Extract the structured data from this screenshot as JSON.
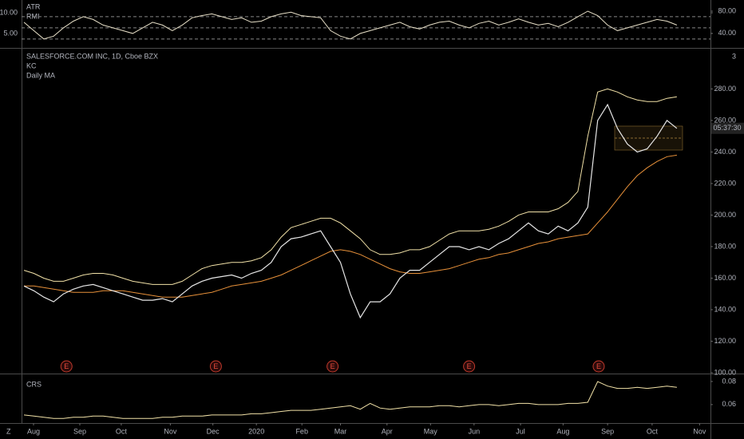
{
  "x_axis": {
    "xlim": [
      -0.24,
      69.4
    ],
    "xticks": [
      {
        "value": 0.97,
        "label": "Aug"
      },
      {
        "value": 5.65,
        "label": "Sep"
      },
      {
        "value": 9.84,
        "label": "Oct"
      },
      {
        "value": 14.8,
        "label": "Nov"
      },
      {
        "value": 19.1,
        "label": "Dec"
      },
      {
        "value": 23.5,
        "label": "2020"
      },
      {
        "value": 28.1,
        "label": "Feb"
      },
      {
        "value": 32.0,
        "label": "Mar"
      },
      {
        "value": 36.7,
        "label": "Apr"
      },
      {
        "value": 41.1,
        "label": "May"
      },
      {
        "value": 45.5,
        "label": "Jun"
      },
      {
        "value": 50.2,
        "label": "Jul"
      },
      {
        "value": 54.5,
        "label": "Aug"
      },
      {
        "value": 59.0,
        "label": "Sep"
      },
      {
        "value": 63.5,
        "label": "Oct"
      },
      {
        "value": 68.3,
        "label": "Nov"
      }
    ]
  },
  "footer": {
    "corner": "Z"
  },
  "chart_data": [
    {
      "type": "line",
      "title": "ATR",
      "ylim": [
        1.5,
        13.1
      ],
      "yticks": [
        {
          "value": 10,
          "label": "10.00"
        },
        {
          "value": 5,
          "label": "5.00"
        }
      ],
      "y2lim": [
        14,
        100
      ],
      "y2ticks": [
        {
          "value": 80,
          "label": "80.00"
        },
        {
          "value": 40,
          "label": "40.00"
        }
      ],
      "y2levels": [
        70,
        50,
        30
      ],
      "series": [
        {
          "name": "RMI",
          "color": "#e8e0c8",
          "axis": "y2",
          "values": [
            60,
            45,
            30,
            35,
            50,
            62,
            70,
            65,
            55,
            50,
            45,
            40,
            50,
            60,
            55,
            45,
            55,
            68,
            72,
            75,
            70,
            65,
            68,
            60,
            62,
            70,
            75,
            78,
            72,
            70,
            68,
            45,
            35,
            30,
            40,
            45,
            50,
            55,
            60,
            52,
            48,
            55,
            60,
            62,
            55,
            50,
            58,
            62,
            55,
            60,
            66,
            60,
            55,
            58,
            52,
            60,
            70,
            80,
            72,
            55,
            45,
            50,
            55,
            60,
            65,
            62,
            55
          ]
        }
      ]
    },
    {
      "type": "line",
      "title": "SALESFORCE.COM INC, 1D, Cboe BZX",
      "scale_label": "3",
      "time_label": "05:37:30",
      "ylim": [
        100,
        305
      ],
      "yticks": [
        {
          "value": 100,
          "label": "100.00"
        },
        {
          "value": 120,
          "label": "120.00"
        },
        {
          "value": 140,
          "label": "140.00"
        },
        {
          "value": 160,
          "label": "160.00"
        },
        {
          "value": 180,
          "label": "180.00"
        },
        {
          "value": 200,
          "label": "200.00"
        },
        {
          "value": 220,
          "label": "220.00"
        },
        {
          "value": 240,
          "label": "240.00"
        },
        {
          "value": 260,
          "label": "260.00"
        },
        {
          "value": 280,
          "label": "280.00"
        }
      ],
      "price": {
        "color": "#e6e6e6",
        "values": [
          155,
          152,
          148,
          145,
          150,
          153,
          155,
          156,
          154,
          152,
          150,
          148,
          146,
          146,
          147,
          145,
          150,
          155,
          158,
          160,
          161,
          162,
          160,
          163,
          165,
          170,
          180,
          185,
          186,
          188,
          190,
          180,
          170,
          150,
          135,
          145,
          145,
          150,
          160,
          165,
          165,
          170,
          175,
          180,
          180,
          178,
          180,
          178,
          182,
          185,
          190,
          195,
          190,
          188,
          193,
          190,
          195,
          205,
          260,
          270,
          255,
          245,
          240,
          242,
          250,
          260,
          255
        ]
      },
      "series": [
        {
          "name": "KC",
          "color": "#f2e2a8",
          "values": [
            165,
            163,
            160,
            158,
            158,
            160,
            162,
            163,
            163,
            162,
            160,
            158,
            157,
            156,
            156,
            156,
            158,
            162,
            166,
            168,
            169,
            170,
            170,
            171,
            173,
            178,
            186,
            192,
            194,
            196,
            198,
            198,
            195,
            190,
            185,
            178,
            175,
            175,
            176,
            178,
            178,
            180,
            184,
            188,
            190,
            190,
            190,
            191,
            193,
            196,
            200,
            202,
            202,
            202,
            204,
            208,
            215,
            250,
            278,
            280,
            278,
            275,
            273,
            272,
            272,
            274,
            275
          ]
        },
        {
          "name": "Daily MA",
          "color": "#e8913a",
          "values": [
            155,
            155,
            154,
            153,
            152,
            151,
            151,
            151,
            152,
            152,
            152,
            151,
            150,
            149,
            148,
            148,
            148,
            149,
            150,
            151,
            153,
            155,
            156,
            157,
            158,
            160,
            162,
            165,
            168,
            171,
            174,
            177,
            178,
            177,
            175,
            172,
            169,
            166,
            164,
            163,
            163,
            164,
            165,
            166,
            168,
            170,
            172,
            173,
            175,
            176,
            178,
            180,
            182,
            183,
            185,
            186,
            187,
            188,
            195,
            202,
            210,
            218,
            225,
            230,
            234,
            237,
            238
          ]
        }
      ],
      "events": {
        "x": [
          4.3,
          19.4,
          31.2,
          45,
          58.1
        ],
        "labels": [
          "E",
          "E",
          "E",
          "E",
          "E"
        ]
      }
    },
    {
      "type": "line",
      "title": "CRS",
      "ylim": [
        0.044,
        0.0855
      ],
      "yticks": [
        0.08,
        0.06
      ],
      "series": [
        {
          "name": "CRS",
          "color": "#f2e2a8",
          "values": [
            0.051,
            0.05,
            0.049,
            0.048,
            0.048,
            0.049,
            0.049,
            0.05,
            0.05,
            0.049,
            0.048,
            0.048,
            0.048,
            0.048,
            0.049,
            0.049,
            0.05,
            0.05,
            0.05,
            0.051,
            0.051,
            0.051,
            0.051,
            0.052,
            0.052,
            0.053,
            0.054,
            0.055,
            0.055,
            0.055,
            0.056,
            0.057,
            0.058,
            0.059,
            0.056,
            0.061,
            0.057,
            0.056,
            0.057,
            0.058,
            0.058,
            0.058,
            0.059,
            0.059,
            0.058,
            0.059,
            0.06,
            0.06,
            0.059,
            0.06,
            0.061,
            0.061,
            0.06,
            0.06,
            0.06,
            0.061,
            0.061,
            0.062,
            0.08,
            0.076,
            0.074,
            0.074,
            0.075,
            0.074,
            0.075,
            0.076,
            0.075
          ]
        }
      ]
    }
  ]
}
